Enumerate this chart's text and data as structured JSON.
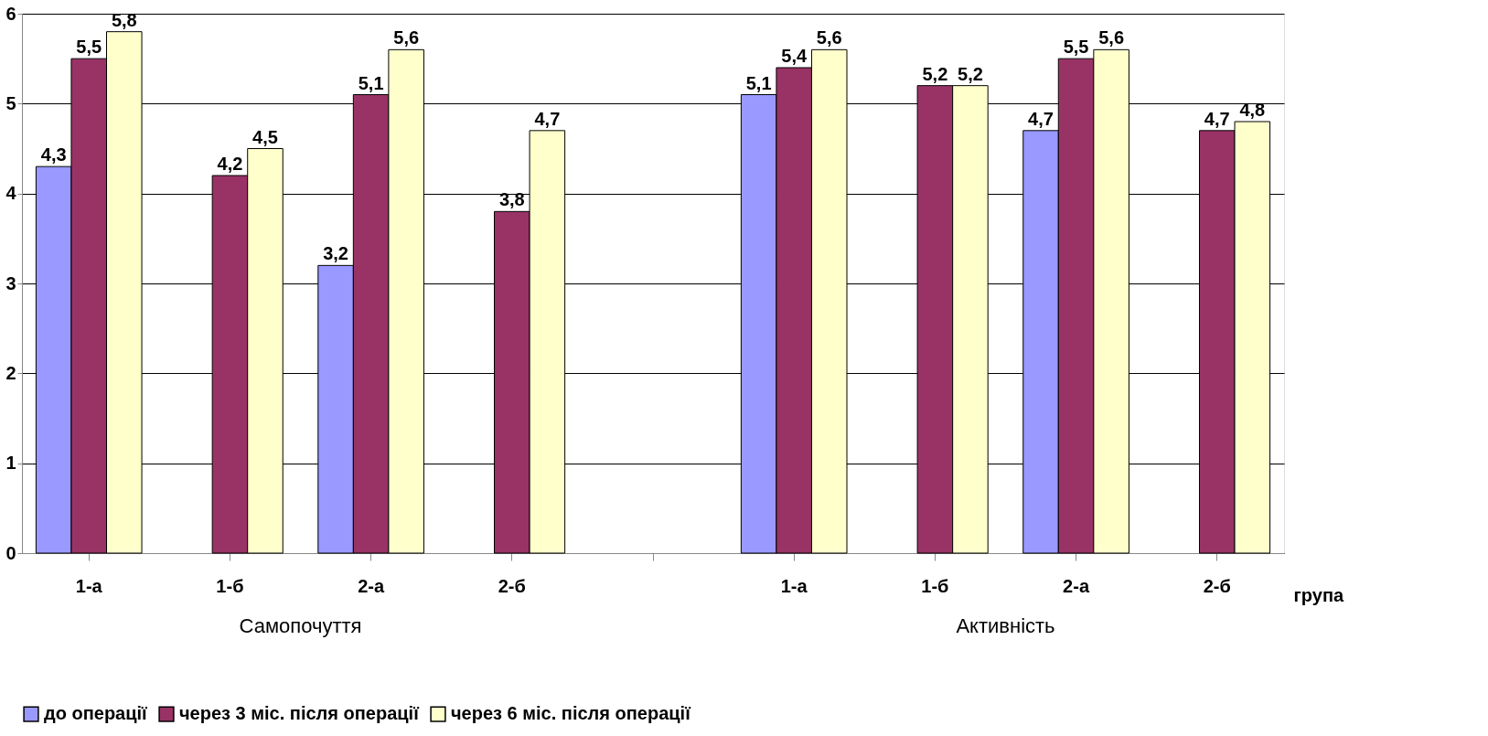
{
  "chart_data": {
    "type": "bar",
    "categories": [
      "1-а",
      "1-б",
      "2-а",
      "2-б",
      null,
      "1-а",
      "1-б",
      "2-а",
      "2-б"
    ],
    "xlabel": "група",
    "series": [
      {
        "name": "до операції",
        "color": "#9999ff",
        "values": [
          4.3,
          null,
          3.2,
          null,
          null,
          5.1,
          null,
          4.7,
          null
        ],
        "value_labels": [
          "4,3",
          null,
          "3,2",
          null,
          null,
          "5,1",
          null,
          "4,7",
          null
        ]
      },
      {
        "name": "через 3 міс. після операції",
        "color": "#993366",
        "values": [
          5.5,
          4.2,
          5.1,
          3.8,
          null,
          5.4,
          5.2,
          5.5,
          4.7
        ],
        "value_labels": [
          "5,5",
          "4,2",
          "5,1",
          "3,8",
          null,
          "5,4",
          "5,2",
          "5,5",
          "4,7"
        ]
      },
      {
        "name": "через 6 міс. після операції",
        "color": "#ffffcc",
        "values": [
          5.8,
          4.5,
          5.6,
          4.7,
          null,
          5.6,
          5.2,
          5.6,
          4.8
        ],
        "value_labels": [
          "5,8",
          "4,5",
          "5,6",
          "4,7",
          null,
          "5,6",
          "5,2",
          "5,6",
          "4,8"
        ]
      }
    ],
    "ylim": [
      0,
      6
    ],
    "yticks": [
      0,
      1,
      2,
      3,
      4,
      5,
      6
    ],
    "grid": "y",
    "legend": "bottom",
    "annotations": [
      "Самопочуття",
      "Активність"
    ]
  }
}
